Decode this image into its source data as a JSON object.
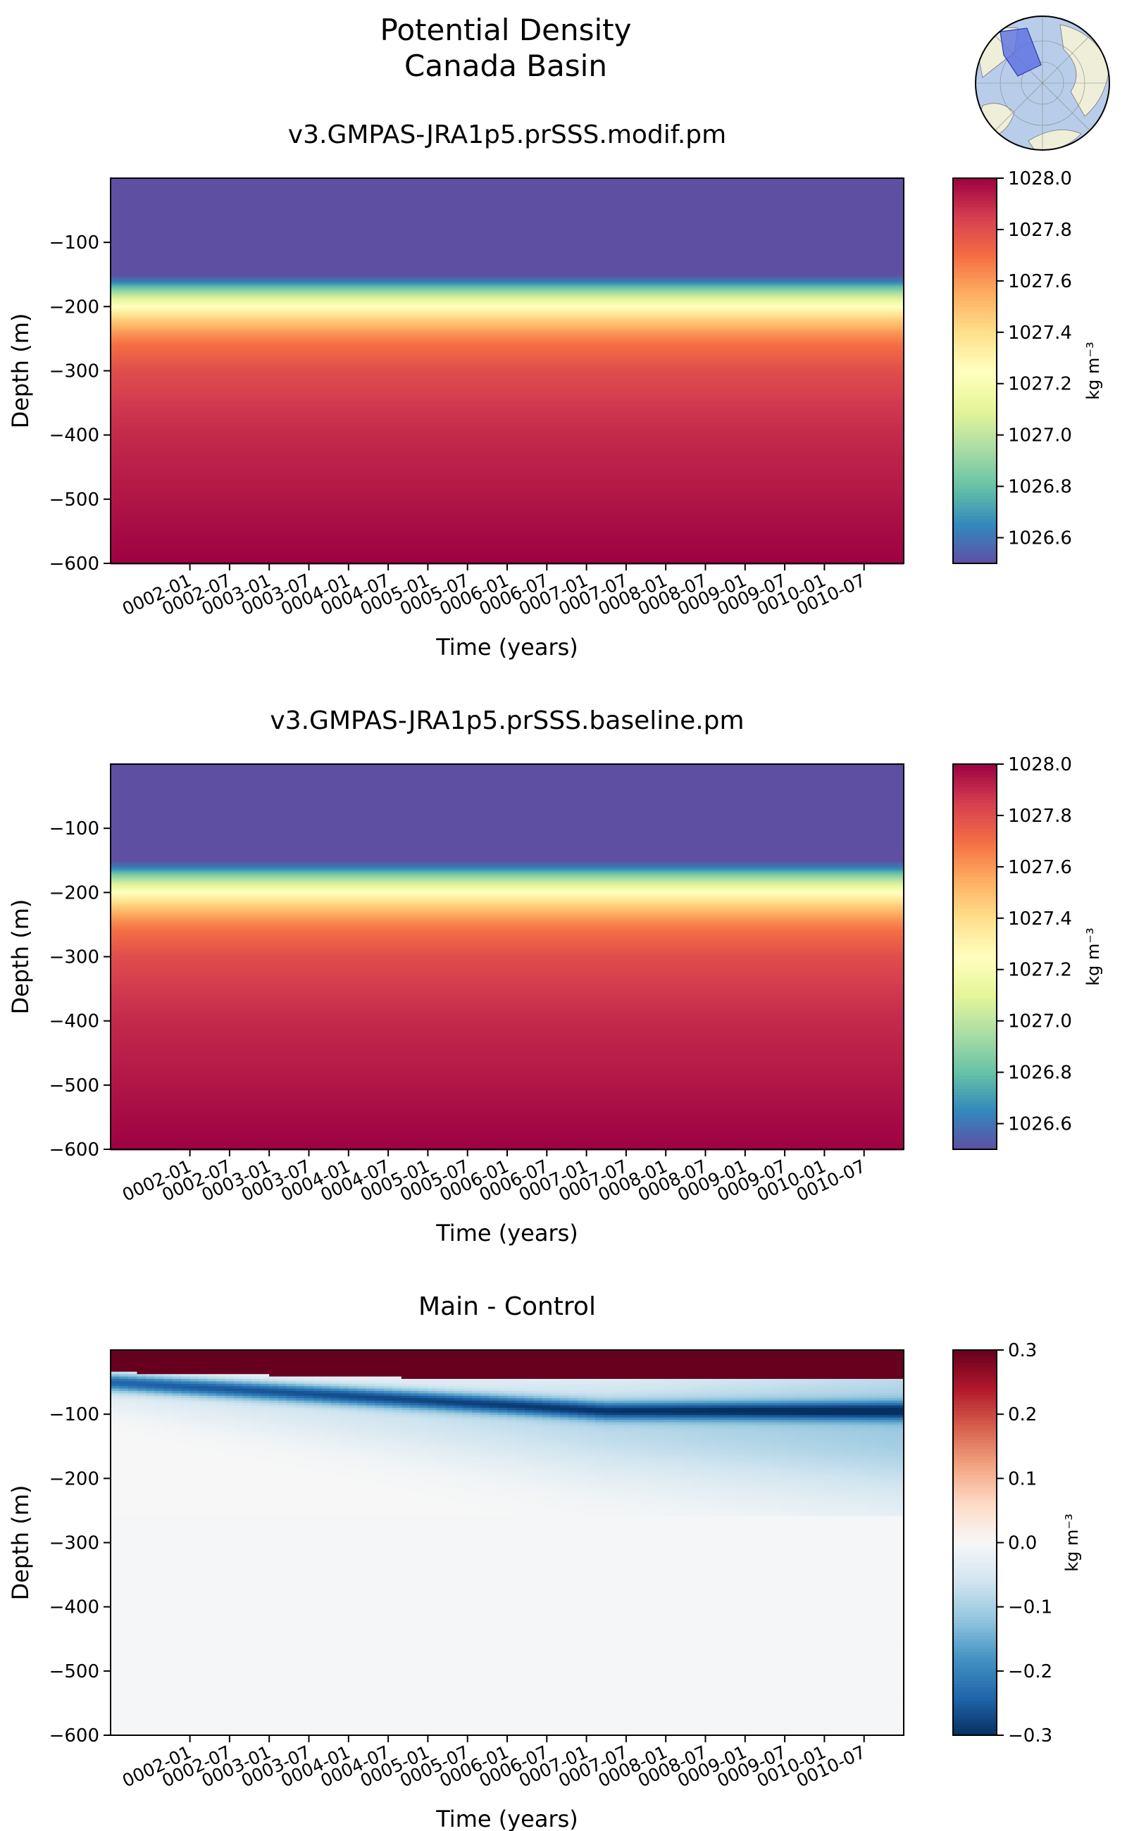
{
  "figure": {
    "title_line1": "Potential Density",
    "title_line2": "Canada Basin"
  },
  "inset_map": {
    "description": "",
    "land_color": "#eeeed9",
    "ocean_color": "#b8cdea",
    "region_color": "#5a6fe0"
  },
  "chart_data": [
    {
      "type": "heatmap",
      "title": "v3.GMPAS-JRA1p5.prSSS.modif.pm",
      "xlabel": "Time (years)",
      "ylabel": "Depth (m)",
      "xlim": [
        "0001-01",
        "0010-12"
      ],
      "ylim": [
        -600,
        0
      ],
      "x_ticks": [
        "0002-01",
        "0002-07",
        "0003-01",
        "0003-07",
        "0004-01",
        "0004-07",
        "0005-01",
        "0005-07",
        "0006-01",
        "0006-07",
        "0007-01",
        "0007-07",
        "0008-01",
        "0008-07",
        "0009-01",
        "0009-07",
        "0010-01",
        "0010-07"
      ],
      "y_ticks": [
        -100,
        -200,
        -300,
        -400,
        -500,
        -600
      ],
      "colormap": "Spectral_r",
      "colorbar": {
        "label": "kg m⁻³",
        "vmin": 1026.5,
        "vmax": 1028.0,
        "ticks": [
          1026.6,
          1026.8,
          1027.0,
          1027.2,
          1027.4,
          1027.6,
          1027.8,
          1028.0
        ]
      },
      "profile_depth": [
        0,
        -150,
        -160,
        -170,
        -185,
        -200,
        -220,
        -240,
        -260,
        -300,
        -350,
        -400,
        -500,
        -600
      ],
      "profile_value": [
        1026.5,
        1026.5,
        1026.6,
        1026.8,
        1027.05,
        1027.25,
        1027.45,
        1027.6,
        1027.7,
        1027.8,
        1027.86,
        1027.9,
        1027.95,
        1028.0
      ]
    },
    {
      "type": "heatmap",
      "title": "v3.GMPAS-JRA1p5.prSSS.baseline.pm",
      "xlabel": "Time (years)",
      "ylabel": "Depth (m)",
      "xlim": [
        "0001-01",
        "0010-12"
      ],
      "ylim": [
        -600,
        0
      ],
      "x_ticks": [
        "0002-01",
        "0002-07",
        "0003-01",
        "0003-07",
        "0004-01",
        "0004-07",
        "0005-01",
        "0005-07",
        "0006-01",
        "0006-07",
        "0007-01",
        "0007-07",
        "0008-01",
        "0008-07",
        "0009-01",
        "0009-07",
        "0010-01",
        "0010-07"
      ],
      "y_ticks": [
        -100,
        -200,
        -300,
        -400,
        -500,
        -600
      ],
      "colormap": "Spectral_r",
      "colorbar": {
        "label": "kg m⁻³",
        "vmin": 1026.5,
        "vmax": 1028.0,
        "ticks": [
          1026.6,
          1026.8,
          1027.0,
          1027.2,
          1027.4,
          1027.6,
          1027.8,
          1028.0
        ]
      },
      "profile_depth": [
        0,
        -150,
        -160,
        -170,
        -185,
        -200,
        -220,
        -240,
        -260,
        -300,
        -350,
        -400,
        -500,
        -600
      ],
      "profile_value": [
        1026.5,
        1026.5,
        1026.6,
        1026.8,
        1027.05,
        1027.25,
        1027.45,
        1027.6,
        1027.7,
        1027.8,
        1027.86,
        1027.9,
        1027.95,
        1028.0
      ]
    },
    {
      "type": "heatmap",
      "title": "Main - Control",
      "xlabel": "Time (years)",
      "ylabel": "Depth (m)",
      "xlim": [
        "0001-01",
        "0010-12"
      ],
      "ylim": [
        -600,
        0
      ],
      "x_ticks": [
        "0002-01",
        "0002-07",
        "0003-01",
        "0003-07",
        "0004-01",
        "0004-07",
        "0005-01",
        "0005-07",
        "0006-01",
        "0006-07",
        "0007-01",
        "0007-07",
        "0008-01",
        "0008-07",
        "0009-01",
        "0009-07",
        "0010-01",
        "0010-07"
      ],
      "y_ticks": [
        -100,
        -200,
        -300,
        -400,
        -500,
        -600
      ],
      "colormap": "RdBu_r",
      "colorbar": {
        "label": "kg m⁻³",
        "vmin": -0.3,
        "vmax": 0.3,
        "ticks": [
          -0.3,
          -0.2,
          -0.1,
          0.0,
          0.1,
          0.2,
          0.3
        ]
      }
    }
  ]
}
